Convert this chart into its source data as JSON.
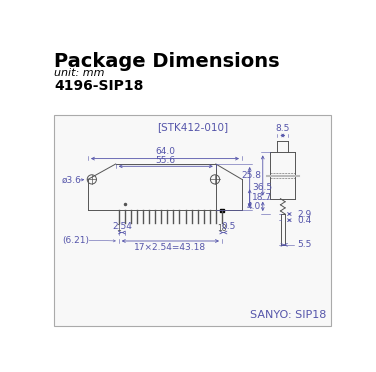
{
  "title": "Package Dimensions",
  "unit_text": "unit: mm",
  "part_number": "4196-SIP18",
  "diagram_label": "[STK412-010]",
  "sanyo_label": "SANYO: SIP18",
  "bg_color": "#ffffff",
  "box_edge_color": "#aaaaaa",
  "box_face_color": "#f8f8f8",
  "dim_color": "#5555aa",
  "draw_color": "#555555",
  "title_color": "#000000",
  "title_fontsize": 14,
  "unit_fontsize": 8,
  "part_fontsize": 10,
  "label_fontsize": 7,
  "dim_fontsize": 6.5,
  "sanyo_fontsize": 8
}
